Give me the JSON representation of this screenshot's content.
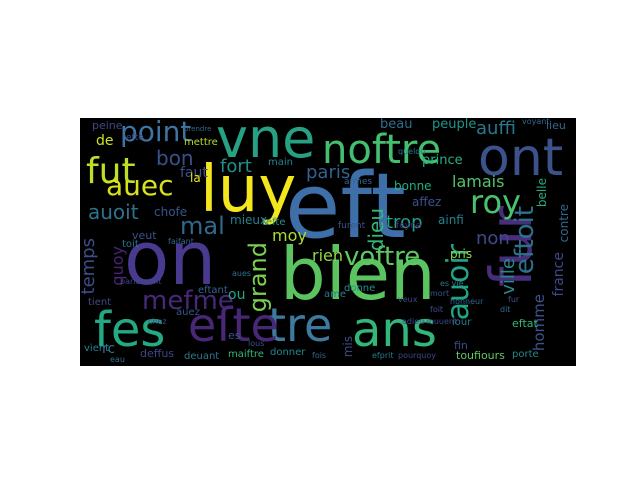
{
  "words": [
    {
      "id": "eft",
      "text": "eft",
      "color": "#3e6fa8"
    },
    {
      "id": "on",
      "text": "on",
      "color": "#4a3a8f"
    },
    {
      "id": "bien",
      "text": "bien",
      "color": "#5bc35f"
    },
    {
      "id": "luy",
      "text": "luy",
      "color": "#f3e51e"
    },
    {
      "id": "vne",
      "text": "vne",
      "color": "#26a184"
    },
    {
      "id": "ont",
      "text": "ont",
      "color": "#3b528b"
    },
    {
      "id": "fur",
      "text": "fur",
      "color": "#482e7a"
    },
    {
      "id": "ans",
      "text": "ans",
      "color": "#32b67a"
    },
    {
      "id": "tre",
      "text": "tre",
      "color": "#3c7aa0"
    },
    {
      "id": "fes",
      "text": "fes",
      "color": "#23a983"
    },
    {
      "id": "efte",
      "text": "eſte",
      "color": "#482777"
    },
    {
      "id": "noftre",
      "text": "noftre",
      "color": "#44bf70"
    },
    {
      "id": "fut",
      "text": "fut",
      "color": "#bddf26"
    },
    {
      "id": "auec",
      "text": "auec",
      "color": "#d8e219"
    },
    {
      "id": "point",
      "text": "point",
      "color": "#3e74a3"
    },
    {
      "id": "roy",
      "text": "roy",
      "color": "#4ac26d"
    },
    {
      "id": "voftre",
      "text": "voftre",
      "color": "#5ec962"
    },
    {
      "id": "auoir",
      "text": "auoir",
      "color": "#21a585"
    },
    {
      "id": "eftoit",
      "text": "eftoit",
      "color": "#2c718e"
    },
    {
      "id": "mefme",
      "text": "mefme",
      "color": "#482878"
    },
    {
      "id": "grand",
      "text": "grand",
      "color": "#7ad151"
    },
    {
      "id": "auoit",
      "text": "auoit",
      "color": "#2c728e"
    },
    {
      "id": "mal",
      "text": "mal",
      "color": "#31688e"
    },
    {
      "id": "bon",
      "text": "bon",
      "color": "#3b518b"
    },
    {
      "id": "fort",
      "text": "fort",
      "color": "#208f8c"
    },
    {
      "id": "paris",
      "text": "paris",
      "color": "#34618d"
    },
    {
      "id": "lamais",
      "text": "lamais",
      "color": "#52c569"
    },
    {
      "id": "dieu",
      "text": "dieu",
      "color": "#35b779"
    },
    {
      "id": "trop",
      "text": "trop",
      "color": "#20a386"
    },
    {
      "id": "non",
      "text": "non",
      "color": "#3e4a89"
    },
    {
      "id": "auffi",
      "text": "auffi",
      "color": "#2a788e"
    },
    {
      "id": "ville",
      "text": "ville",
      "color": "#238a8d"
    },
    {
      "id": "moy",
      "text": "moy",
      "color": "#addc30"
    },
    {
      "id": "rien",
      "text": "rien",
      "color": "#8fd744"
    },
    {
      "id": "temps",
      "text": "temps",
      "color": "#3d4d8a"
    },
    {
      "id": "quoy",
      "text": "quoy",
      "color": "#482475"
    },
    {
      "id": "homme",
      "text": "homme",
      "color": "#3b528b"
    },
    {
      "id": "france",
      "text": "france",
      "color": "#3e4989"
    },
    {
      "id": "contre",
      "text": "contre",
      "color": "#31688e"
    },
    {
      "id": "peuple",
      "text": "peuple",
      "color": "#1f948c"
    },
    {
      "id": "prince",
      "text": "prince",
      "color": "#28ae80"
    },
    {
      "id": "beau",
      "text": "beau",
      "color": "#2e6e8e"
    },
    {
      "id": "de",
      "text": "de",
      "color": "#d0e11c"
    },
    {
      "id": "faut",
      "text": "faut",
      "color": "#3b528b"
    },
    {
      "id": "la",
      "text": "la",
      "color": "#e7e419"
    },
    {
      "id": "mettre",
      "text": "mettre",
      "color": "#b5de2b"
    },
    {
      "id": "main",
      "text": "main",
      "color": "#26828e"
    },
    {
      "id": "mieux",
      "text": "mieux",
      "color": "#27808e"
    },
    {
      "id": "chofe",
      "text": "chofe",
      "color": "#3a548c"
    },
    {
      "id": "tefte",
      "text": "tefte",
      "color": "#20928c"
    },
    {
      "id": "ou",
      "text": "ou",
      "color": "#22a884"
    },
    {
      "id": "es",
      "text": "es",
      "color": "#3b528b"
    },
    {
      "id": "eftant",
      "text": "eftant",
      "color": "#33638d"
    },
    {
      "id": "auez",
      "text": "auez",
      "color": "#39558c"
    },
    {
      "id": "deffus",
      "text": "deffus",
      "color": "#3f4788"
    },
    {
      "id": "deuant",
      "text": "deuant",
      "color": "#2a788e"
    },
    {
      "id": "maiftre",
      "text": "maiftre",
      "color": "#35b779"
    },
    {
      "id": "donner",
      "text": "donner",
      "color": "#23888e"
    },
    {
      "id": "mis",
      "text": "mis",
      "color": "#3e4a89"
    },
    {
      "id": "donne",
      "text": "donne",
      "color": "#20928c"
    },
    {
      "id": "bonne",
      "text": "bonne",
      "color": "#26ad81"
    },
    {
      "id": "affez",
      "text": "affez",
      "color": "#3b518b"
    },
    {
      "id": "ainfi",
      "text": "ainfi",
      "color": "#26828e"
    },
    {
      "id": "pris",
      "text": "pris",
      "color": "#90d743"
    },
    {
      "id": "eftat",
      "text": "eftat",
      "color": "#35b779"
    },
    {
      "id": "iour",
      "text": "iour",
      "color": "#2a788e"
    },
    {
      "id": "fin",
      "text": "fin",
      "color": "#3e4989"
    },
    {
      "id": "toufiours",
      "text": "toufiours",
      "color": "#5ec962"
    },
    {
      "id": "porte",
      "text": "porte",
      "color": "#23888e"
    },
    {
      "id": "belle",
      "text": "belle",
      "color": "#26ad81"
    },
    {
      "id": "lieu",
      "text": "lieu",
      "color": "#306a8e"
    },
    {
      "id": "honneur",
      "text": "honneur",
      "color": "#31688e"
    },
    {
      "id": "tient",
      "text": "tient",
      "color": "#3e4a89"
    },
    {
      "id": "vient",
      "text": "vient",
      "color": "#26828e"
    },
    {
      "id": "veut",
      "text": "veut",
      "color": "#3b528b"
    },
    {
      "id": "toit",
      "text": "toit",
      "color": "#2c728e"
    },
    {
      "id": "ame",
      "text": "ame",
      "color": "#287c8e"
    },
    {
      "id": "rc",
      "text": "rc",
      "color": "#2c728e"
    },
    {
      "id": "peine",
      "text": "peine",
      "color": "#3e4a89"
    },
    {
      "id": "armes",
      "text": "armes",
      "color": "#31688e"
    },
    {
      "id": "furent",
      "text": "furent",
      "color": "#3b528b"
    },
    {
      "id": "feyne",
      "text": "feyne",
      "color": "#482878"
    },
    {
      "id": "quelque",
      "text": "quelqu",
      "color": "#2a788e"
    },
    {
      "id": "adieu",
      "text": "adieu louuent",
      "color": "#3e4a89"
    },
    {
      "id": "foit",
      "text": "foit",
      "color": "#3b528b"
    },
    {
      "id": "fois",
      "text": "fois",
      "color": "#31688e"
    },
    {
      "id": "efprit",
      "text": "efprit",
      "color": "#2a788e"
    },
    {
      "id": "pourquoy",
      "text": "pourquoy",
      "color": "#3e4a89"
    },
    {
      "id": "mort",
      "text": "mort",
      "color": "#3b528b"
    },
    {
      "id": "faifant",
      "text": "faifant",
      "color": "#31688e"
    },
    {
      "id": "parlement",
      "text": "parlement",
      "color": "#3e4a89"
    },
    {
      "id": "eau",
      "text": "eau",
      "color": "#2c728e"
    },
    {
      "id": "lous",
      "text": "lous",
      "color": "#3b528b"
    },
    {
      "id": "efte2",
      "text": "eſte",
      "color": "#3e4a89"
    },
    {
      "id": "voyant",
      "text": "voyant",
      "color": "#31688e"
    },
    {
      "id": "vie",
      "text": "es vie",
      "color": "#2a788e"
    },
    {
      "id": "veux",
      "text": "veux",
      "color": "#3e4989"
    },
    {
      "id": "dit",
      "text": "dit",
      "color": "#31688e"
    },
    {
      "id": "fur2",
      "text": "fur",
      "color": "#3b528b"
    },
    {
      "id": "prendre",
      "text": "prendre",
      "color": "#31688e"
    },
    {
      "id": "chez",
      "text": "chez",
      "color": "#3e4a89"
    },
    {
      "id": "aues",
      "text": "aues",
      "color": "#2c728e"
    }
  ]
}
